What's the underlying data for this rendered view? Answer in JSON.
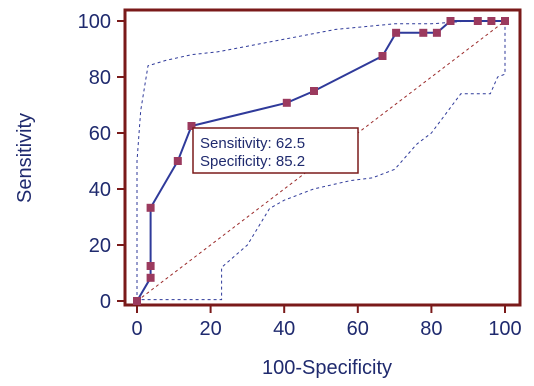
{
  "chart_data": {
    "type": "line",
    "title": "",
    "xlabel": "100-Specificity",
    "ylabel": "Sensitivity",
    "xlim": [
      0,
      100
    ],
    "ylim": [
      0,
      100
    ],
    "x_ticks": [
      0,
      20,
      40,
      60,
      80,
      100
    ],
    "y_ticks": [
      0,
      20,
      40,
      60,
      80,
      100
    ],
    "grid": false,
    "series": [
      {
        "role": "roc-curve",
        "style": "solid-with-square-markers",
        "color": "#2f3a9a",
        "marker_color": "#9b3a5e",
        "points": [
          [
            0,
            0
          ],
          [
            3.7,
            8.3
          ],
          [
            3.7,
            12.5
          ],
          [
            3.7,
            33.3
          ],
          [
            11.1,
            50
          ],
          [
            14.8,
            62.5
          ],
          [
            40.7,
            70.8
          ],
          [
            48.1,
            75
          ],
          [
            66.7,
            87.5
          ],
          [
            70.4,
            95.8
          ],
          [
            77.8,
            95.8
          ],
          [
            81.5,
            95.8
          ],
          [
            85.2,
            100
          ],
          [
            92.6,
            100
          ],
          [
            96.3,
            100
          ],
          [
            100,
            100
          ]
        ]
      },
      {
        "role": "upper-confidence-bound",
        "style": "dashed",
        "color": "#2f3a9a",
        "points": [
          [
            0,
            0
          ],
          [
            0,
            50
          ],
          [
            1,
            68
          ],
          [
            3,
            84
          ],
          [
            8,
            86
          ],
          [
            15,
            88
          ],
          [
            22,
            89
          ],
          [
            30,
            91
          ],
          [
            38,
            93
          ],
          [
            46,
            95
          ],
          [
            54,
            97
          ],
          [
            62,
            98
          ],
          [
            70,
            99
          ],
          [
            80,
            99
          ],
          [
            90,
            100
          ],
          [
            100,
            100
          ]
        ]
      },
      {
        "role": "lower-confidence-bound",
        "style": "dashed",
        "color": "#2f3a9a",
        "points": [
          [
            0,
            0
          ],
          [
            0,
            0.5
          ],
          [
            23,
            0.5
          ],
          [
            23,
            12
          ],
          [
            30,
            20
          ],
          [
            36,
            33
          ],
          [
            40,
            36
          ],
          [
            48,
            40
          ],
          [
            58,
            43
          ],
          [
            64,
            44
          ],
          [
            70,
            47
          ],
          [
            72,
            50
          ],
          [
            76,
            56
          ],
          [
            80,
            60
          ],
          [
            84,
            67
          ],
          [
            88,
            74
          ],
          [
            96,
            74
          ],
          [
            98,
            80
          ],
          [
            100,
            81
          ],
          [
            100,
            100
          ]
        ]
      },
      {
        "role": "reference-diagonal",
        "style": "dashed",
        "color": "#9b2b2b",
        "points": [
          [
            0,
            0
          ],
          [
            100,
            100
          ]
        ]
      }
    ],
    "annotation": {
      "anchor": [
        14.8,
        62.5
      ],
      "lines": [
        "Sensitivity: 62.5",
        "Specificity: 85.2"
      ]
    }
  }
}
